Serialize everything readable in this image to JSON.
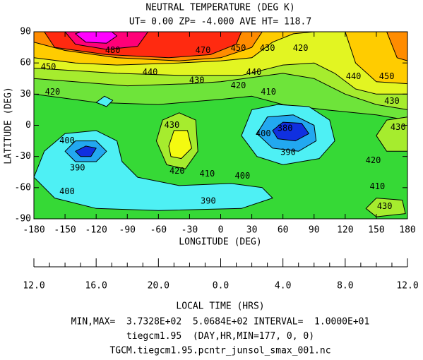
{
  "chart_data": {
    "type": "contour",
    "title": "NEUTRAL TEMPERATURE (DEG K)",
    "subtitle": "UT= 0.00 ZP= -4.000 AVE HT= 118.7",
    "xlabel": "LONGITUDE (DEG)",
    "ylabel": "LATITUDE (DEG)",
    "x2label": "LOCAL TIME (HRS)",
    "xlim": [
      -180,
      180
    ],
    "ylim": [
      -90,
      90
    ],
    "xticks": [
      -180,
      -150,
      -120,
      -90,
      -60,
      -30,
      0,
      30,
      60,
      90,
      120,
      150,
      180
    ],
    "yticks": [
      -90,
      -60,
      -30,
      0,
      30,
      60,
      90
    ],
    "x2ticks": [
      {
        "value": -180,
        "label": "12.0"
      },
      {
        "value": -120,
        "label": "16.0"
      },
      {
        "value": -60,
        "label": "20.0"
      },
      {
        "value": 0,
        "label": "0.0"
      },
      {
        "value": 60,
        "label": "4.0"
      },
      {
        "value": 120,
        "label": "8.0"
      },
      {
        "value": 180,
        "label": "12.0"
      }
    ],
    "regions": [
      {
        "level": 410,
        "color": "#36d936",
        "points": [
          [
            -180,
            -90
          ],
          [
            180,
            -90
          ],
          [
            180,
            90
          ],
          [
            -180,
            90
          ]
        ]
      },
      {
        "level": 420,
        "color": "#6ee43a",
        "points": [
          [
            -180,
            30
          ],
          [
            -120,
            22
          ],
          [
            -60,
            20
          ],
          [
            0,
            25
          ],
          [
            30,
            28
          ],
          [
            60,
            20
          ],
          [
            100,
            15
          ],
          [
            150,
            10
          ],
          [
            180,
            5
          ],
          [
            180,
            90
          ],
          [
            -180,
            90
          ]
        ]
      },
      {
        "level": 430,
        "color": "#a6ec2e",
        "points": [
          [
            -180,
            45
          ],
          [
            -90,
            38
          ],
          [
            -30,
            40
          ],
          [
            0,
            42
          ],
          [
            60,
            50
          ],
          [
            90,
            45
          ],
          [
            120,
            30
          ],
          [
            150,
            20
          ],
          [
            180,
            15
          ],
          [
            180,
            90
          ],
          [
            -180,
            90
          ]
        ]
      },
      {
        "level": 440,
        "color": "#e2f522",
        "points": [
          [
            -180,
            55
          ],
          [
            -100,
            50
          ],
          [
            -40,
            48
          ],
          [
            20,
            48
          ],
          [
            60,
            58
          ],
          [
            90,
            60
          ],
          [
            110,
            50
          ],
          [
            130,
            35
          ],
          [
            150,
            30
          ],
          [
            180,
            30
          ],
          [
            180,
            90
          ],
          [
            -180,
            90
          ]
        ]
      },
      {
        "level": 450,
        "color": "#ffcc00",
        "points": [
          [
            -180,
            65
          ],
          [
            -140,
            60
          ],
          [
            -100,
            58
          ],
          [
            -40,
            60
          ],
          [
            0,
            62
          ],
          [
            30,
            65
          ],
          [
            50,
            80
          ],
          [
            70,
            88
          ],
          [
            90,
            90
          ],
          [
            -180,
            90
          ]
        ]
      },
      {
        "level": 450,
        "color": "#ffcc00",
        "points": [
          [
            120,
            90
          ],
          [
            130,
            60
          ],
          [
            150,
            42
          ],
          [
            180,
            40
          ],
          [
            180,
            90
          ]
        ]
      },
      {
        "level": 460,
        "color": "#ff8c00",
        "points": [
          [
            -180,
            80
          ],
          [
            -150,
            72
          ],
          [
            -100,
            65
          ],
          [
            -40,
            62
          ],
          [
            0,
            65
          ],
          [
            30,
            75
          ],
          [
            40,
            90
          ],
          [
            -180,
            90
          ]
        ]
      },
      {
        "level": 460,
        "color": "#ff8c00",
        "points": [
          [
            160,
            90
          ],
          [
            170,
            65
          ],
          [
            180,
            62
          ],
          [
            180,
            90
          ]
        ]
      },
      {
        "level": 470,
        "color": "#ff2a10",
        "points": [
          [
            -170,
            90
          ],
          [
            -160,
            75
          ],
          [
            -110,
            68
          ],
          [
            -50,
            65
          ],
          [
            -10,
            68
          ],
          [
            15,
            78
          ],
          [
            20,
            90
          ]
        ]
      },
      {
        "level": 480,
        "color": "#ff0078",
        "points": [
          [
            -150,
            90
          ],
          [
            -140,
            78
          ],
          [
            -110,
            73
          ],
          [
            -80,
            76
          ],
          [
            -70,
            90
          ]
        ]
      },
      {
        "level": 490,
        "color": "#ff00ff",
        "points": [
          [
            -140,
            88
          ],
          [
            -130,
            80
          ],
          [
            -110,
            79
          ],
          [
            -100,
            86
          ],
          [
            -105,
            90
          ],
          [
            -135,
            90
          ]
        ]
      },
      {
        "level": 430,
        "color": "#a6ec2e",
        "points": [
          [
            -62,
            -15
          ],
          [
            -56,
            5
          ],
          [
            -40,
            12
          ],
          [
            -24,
            5
          ],
          [
            -22,
            -25
          ],
          [
            -34,
            -42
          ],
          [
            -52,
            -38
          ]
        ]
      },
      {
        "level": 440,
        "color": "#f4fa10",
        "points": [
          [
            -50,
            -20
          ],
          [
            -45,
            -5
          ],
          [
            -32,
            -5
          ],
          [
            -28,
            -22
          ],
          [
            -38,
            -32
          ],
          [
            -48,
            -30
          ]
        ]
      },
      {
        "level": 430,
        "color": "#a6ec2e",
        "points": [
          [
            150,
            -10
          ],
          [
            160,
            5
          ],
          [
            180,
            8
          ],
          [
            180,
            -25
          ],
          [
            160,
            -25
          ]
        ]
      },
      {
        "level": 430,
        "color": "#a6ec2e",
        "points": [
          [
            140,
            -80
          ],
          [
            150,
            -70
          ],
          [
            175,
            -72
          ],
          [
            178,
            -85
          ],
          [
            150,
            -88
          ]
        ]
      },
      {
        "level": 390,
        "color": "#4ef0f4",
        "points": [
          [
            -120,
            22
          ],
          [
            -112,
            28
          ],
          [
            -104,
            24
          ],
          [
            -110,
            18
          ]
        ]
      },
      {
        "level": 390,
        "color": "#4ef0f4",
        "points": [
          [
            -180,
            -50
          ],
          [
            -170,
            -25
          ],
          [
            -150,
            -8
          ],
          [
            -120,
            -5
          ],
          [
            -100,
            -15
          ],
          [
            -95,
            -35
          ],
          [
            -80,
            -50
          ],
          [
            -40,
            -58
          ],
          [
            10,
            -56
          ],
          [
            40,
            -60
          ],
          [
            50,
            -70
          ],
          [
            20,
            -80
          ],
          [
            -60,
            -82
          ],
          [
            -120,
            -80
          ],
          [
            -160,
            -70
          ]
        ]
      },
      {
        "level": 380,
        "color": "#22a8f0",
        "points": [
          [
            -150,
            -25
          ],
          [
            -140,
            -15
          ],
          [
            -120,
            -15
          ],
          [
            -110,
            -25
          ],
          [
            -120,
            -35
          ],
          [
            -140,
            -35
          ]
        ]
      },
      {
        "level": 370,
        "color": "#1030e0",
        "points": [
          [
            -140,
            -25
          ],
          [
            -130,
            -20
          ],
          [
            -120,
            -22
          ],
          [
            -125,
            -30
          ],
          [
            -135,
            -30
          ]
        ]
      },
      {
        "level": 390,
        "color": "#4ef0f4",
        "points": [
          [
            20,
            -10
          ],
          [
            30,
            15
          ],
          [
            55,
            20
          ],
          [
            85,
            18
          ],
          [
            105,
            5
          ],
          [
            110,
            -15
          ],
          [
            95,
            -32
          ],
          [
            60,
            -38
          ],
          [
            35,
            -30
          ]
        ]
      },
      {
        "level": 380,
        "color": "#22a8f0",
        "points": [
          [
            35,
            -8
          ],
          [
            45,
            8
          ],
          [
            70,
            10
          ],
          [
            90,
            0
          ],
          [
            92,
            -15
          ],
          [
            75,
            -25
          ],
          [
            50,
            -22
          ]
        ]
      },
      {
        "level": 370,
        "color": "#1030e0",
        "points": [
          [
            50,
            -5
          ],
          [
            60,
            3
          ],
          [
            78,
            2
          ],
          [
            85,
            -8
          ],
          [
            72,
            -15
          ],
          [
            55,
            -13
          ]
        ]
      }
    ],
    "contour_labels": [
      {
        "lon": -104,
        "lat": 72,
        "value": 480
      },
      {
        "lon": -17,
        "lat": 72,
        "value": 470
      },
      {
        "lon": 17,
        "lat": 74,
        "value": 450
      },
      {
        "lon": 45,
        "lat": 74,
        "value": 430
      },
      {
        "lon": 77,
        "lat": 74,
        "value": 420
      },
      {
        "lon": -166,
        "lat": 56,
        "value": 450
      },
      {
        "lon": -68,
        "lat": 51,
        "value": 440
      },
      {
        "lon": 32,
        "lat": 51,
        "value": 440
      },
      {
        "lon": 128,
        "lat": 47,
        "value": 440
      },
      {
        "lon": 160,
        "lat": 47,
        "value": 450
      },
      {
        "lon": -23,
        "lat": 43,
        "value": 430
      },
      {
        "lon": -162,
        "lat": 32,
        "value": 420
      },
      {
        "lon": 17,
        "lat": 38,
        "value": 420
      },
      {
        "lon": 46,
        "lat": 32,
        "value": 410
      },
      {
        "lon": 165,
        "lat": 23,
        "value": 430
      },
      {
        "lon": -47,
        "lat": 0,
        "value": 430
      },
      {
        "lon": 62,
        "lat": -3,
        "value": 380
      },
      {
        "lon": 41,
        "lat": -8,
        "value": 400
      },
      {
        "lon": 171,
        "lat": -2,
        "value": 430
      },
      {
        "lon": -148,
        "lat": -15,
        "value": 400
      },
      {
        "lon": 65,
        "lat": -26,
        "value": 390
      },
      {
        "lon": 147,
        "lat": -34,
        "value": 420
      },
      {
        "lon": -138,
        "lat": -41,
        "value": 390
      },
      {
        "lon": -42,
        "lat": -44,
        "value": 420
      },
      {
        "lon": -13,
        "lat": -47,
        "value": 410
      },
      {
        "lon": 21,
        "lat": -49,
        "value": 400
      },
      {
        "lon": 151,
        "lat": -59,
        "value": 410
      },
      {
        "lon": -148,
        "lat": -64,
        "value": 400
      },
      {
        "lon": -12,
        "lat": -73,
        "value": 390
      },
      {
        "lon": 158,
        "lat": -78,
        "value": 430
      }
    ],
    "footer": [
      "MIN,MAX=  3.7328E+02  5.0684E+02 INTERVAL=  1.0000E+01",
      "tiegcm1.95  (DAY,HR,MIN=177, 0, 0)",
      "TGCM.tiegcm1.95.pcntr_junsol_smax_001.nc"
    ]
  }
}
